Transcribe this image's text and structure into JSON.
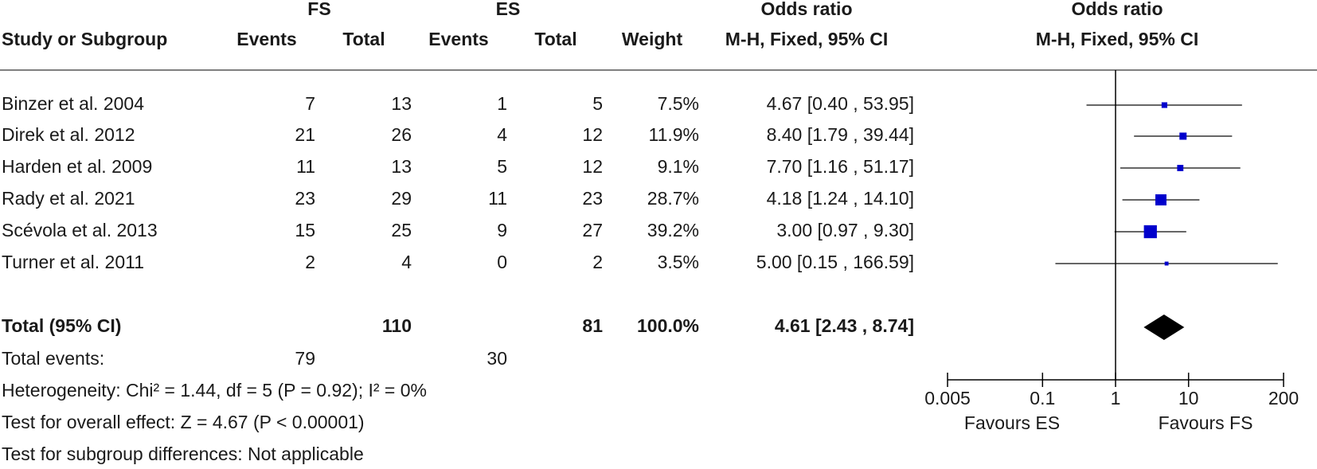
{
  "chart_data": {
    "type": "forest",
    "group_headers": [
      "FS",
      "ES",
      "Odds ratio",
      "Odds ratio"
    ],
    "column_headers": [
      "Study or Subgroup",
      "Events",
      "Total",
      "Events",
      "Total",
      "Weight",
      "M-H, Fixed, 95% CI",
      "M-H, Fixed, 95% CI"
    ],
    "categories": [
      "Binzer et al. 2004",
      "Direk et al. 2012",
      "Harden et al. 2009",
      "Rady et al. 2021",
      "Scévola et al. 2013",
      "Turner et al. 2011"
    ],
    "fs_events": [
      7,
      21,
      11,
      23,
      15,
      2
    ],
    "fs_total": [
      13,
      26,
      13,
      29,
      25,
      4
    ],
    "es_events": [
      1,
      4,
      5,
      11,
      9,
      0
    ],
    "es_total": [
      5,
      12,
      12,
      23,
      27,
      2
    ],
    "weights": [
      7.5,
      11.9,
      9.1,
      28.7,
      39.2,
      3.5
    ],
    "weight_labels": [
      "7.5%",
      "11.9%",
      "9.1%",
      "28.7%",
      "39.2%",
      "3.5%"
    ],
    "values": [
      4.67,
      8.4,
      7.7,
      4.18,
      3.0,
      5.0
    ],
    "lower": [
      0.4,
      1.79,
      1.16,
      1.24,
      0.97,
      0.15
    ],
    "upper": [
      53.95,
      39.44,
      51.17,
      14.1,
      9.3,
      166.59
    ],
    "value_labels": [
      "4.67 [0.40 , 53.95]",
      "8.40 [1.79 , 39.44]",
      "7.70 [1.16 , 51.17]",
      "4.18 [1.24 , 14.10]",
      "3.00 [0.97 , 9.30]",
      "5.00 [0.15 , 166.59]"
    ],
    "total": {
      "label": "Total (95% CI)",
      "fs_total": 110,
      "es_total": 81,
      "weight": 100,
      "weight_label": "100.0%",
      "value": 4.61,
      "lower": 2.43,
      "upper": 8.74,
      "value_label": "4.61 [2.43 , 8.74]"
    },
    "total_events": {
      "label": "Total events:",
      "fs": 79,
      "es": 30
    },
    "notes": [
      "Heterogeneity: Chi² = 1.44, df = 5 (P = 0.92); I² = 0%",
      "Test for overall effect: Z = 4.67 (P < 0.00001)",
      "Test for subgroup differences: Not applicable"
    ],
    "xlim": [
      0.005,
      200
    ],
    "xticks": [
      0.005,
      0.1,
      1,
      10,
      200
    ],
    "log_scale": true,
    "reference_line": 1,
    "favours_left": "Favours ES",
    "favours_right": "Favours FS",
    "color": "#0000cc"
  }
}
